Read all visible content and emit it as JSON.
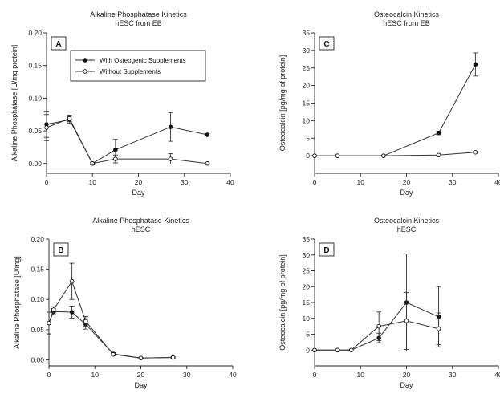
{
  "chart_data": [
    {
      "id": "A",
      "type": "line",
      "panel_label": "A",
      "title": "Alkaline Phosphatase Kinetics",
      "subtitle": "hESC from EB",
      "xlabel": "Day",
      "ylabel": "Alkaline Phosphatase  [U/mg protein]",
      "xlim": [
        0,
        40
      ],
      "ylim": [
        -0.015,
        0.2
      ],
      "xticks": [
        0,
        10,
        20,
        30,
        40
      ],
      "yticks": [
        "0.00",
        "0.05",
        "0.10",
        "0.15",
        "0.20"
      ],
      "legend": {
        "placement": "top-left-inside",
        "entries": [
          "With Osteogenic Supplements",
          "Without Supplements"
        ]
      },
      "series": [
        {
          "name": "With Osteogenic Supplements",
          "marker": "filled",
          "x": [
            0,
            5,
            10,
            15,
            27,
            35
          ],
          "y": [
            0.06,
            0.067,
            0.0,
            0.021,
            0.056,
            0.044
          ],
          "err": [
            0.02,
            0.005,
            0.002,
            0.016,
            0.022,
            0.002
          ]
        },
        {
          "name": "Without Supplements",
          "marker": "open",
          "x": [
            0,
            5,
            10,
            15,
            27,
            35
          ],
          "y": [
            0.055,
            0.069,
            0.0,
            0.007,
            0.007,
            0.0
          ],
          "err": [
            0.02,
            0.005,
            0.002,
            0.006,
            0.008,
            0.001
          ]
        }
      ]
    },
    {
      "id": "C",
      "type": "line",
      "panel_label": "C",
      "title": "Osteocalcin Kinetics",
      "subtitle": "hESC from EB",
      "xlabel": "Day",
      "ylabel": "Osteocalcin [pg/mg of protein]",
      "xlim": [
        0,
        40
      ],
      "ylim": [
        -5,
        35
      ],
      "xticks": [
        0,
        10,
        20,
        30,
        40
      ],
      "yticks": [
        "0",
        "5",
        "10",
        "15",
        "20",
        "25",
        "30",
        "35"
      ],
      "series": [
        {
          "name": "With Osteogenic Supplements",
          "marker": "filled",
          "x": [
            0,
            5,
            15,
            27,
            35
          ],
          "y": [
            0,
            0,
            0,
            6.5,
            26
          ],
          "err": [
            0,
            0,
            0,
            0.5,
            3.3
          ]
        },
        {
          "name": "Without Supplements",
          "marker": "open",
          "x": [
            0,
            5,
            15,
            27,
            35
          ],
          "y": [
            0,
            0,
            0,
            0.2,
            1.0
          ],
          "err": [
            0,
            0,
            0,
            0.2,
            0.3
          ]
        }
      ]
    },
    {
      "id": "B",
      "type": "line",
      "panel_label": "B",
      "title": "Alkaline Phosphatase Kinetics",
      "subtitle": "hESC",
      "xlabel": "Day",
      "ylabel": "Alkaline Phosphatase [U/mg]",
      "xlim": [
        0,
        40
      ],
      "ylim": [
        -0.01,
        0.2
      ],
      "xticks": [
        0,
        10,
        20,
        30,
        40
      ],
      "yticks": [
        "0.00",
        "0.05",
        "0.10",
        "0.15",
        "0.20"
      ],
      "series": [
        {
          "name": "With Osteogenic Supplements",
          "marker": "filled",
          "x": [
            0,
            1,
            5,
            8,
            14,
            20,
            27
          ],
          "y": [
            0.061,
            0.08,
            0.079,
            0.059,
            0.01,
            0.003,
            0.004
          ],
          "err": [
            0.018,
            0.005,
            0.01,
            0.008,
            0.002,
            0.001,
            0.001
          ]
        },
        {
          "name": "Without Supplements",
          "marker": "open",
          "x": [
            0,
            1,
            5,
            8,
            14,
            20,
            27
          ],
          "y": [
            0.061,
            0.083,
            0.13,
            0.064,
            0.009,
            0.003,
            0.004
          ],
          "err": [
            0.018,
            0.005,
            0.03,
            0.008,
            0.002,
            0.001,
            0.001
          ]
        }
      ]
    },
    {
      "id": "D",
      "type": "line",
      "panel_label": "D",
      "title": "Osteocalcin Kinetics",
      "subtitle": "hESC",
      "xlabel": "Day",
      "ylabel": "Osteocalcin [pg/mg of protein]",
      "xlim": [
        0,
        40
      ],
      "ylim": [
        -5,
        35
      ],
      "xticks": [
        0,
        10,
        20,
        30,
        40
      ],
      "yticks": [
        "0",
        "5",
        "10",
        "15",
        "20",
        "25",
        "30",
        "35"
      ],
      "series": [
        {
          "name": "With Osteogenic Supplements",
          "marker": "filled",
          "x": [
            0,
            5,
            8,
            14,
            20,
            27
          ],
          "y": [
            0,
            0,
            0,
            3.8,
            15,
            10.5
          ],
          "err": [
            0,
            0,
            0,
            1.5,
            15.3,
            9.5
          ]
        },
        {
          "name": "Without Supplements",
          "marker": "open",
          "x": [
            0,
            5,
            8,
            14,
            20,
            27
          ],
          "y": [
            0,
            0,
            0,
            7.5,
            9.2,
            6.7
          ],
          "err": [
            0,
            0,
            0,
            4.5,
            9.0,
            5.0
          ]
        }
      ]
    }
  ]
}
